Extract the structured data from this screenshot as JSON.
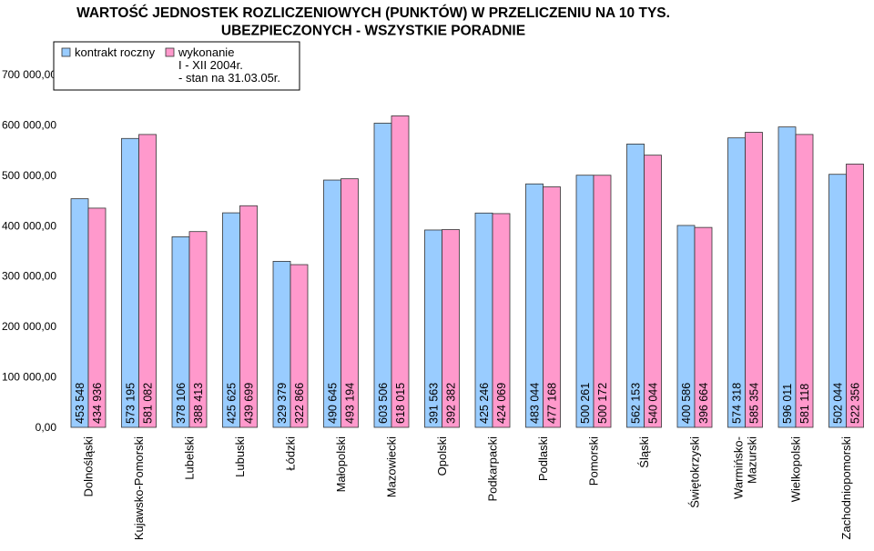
{
  "chart_data": {
    "type": "bar",
    "title": [
      "WARTOŚĆ JEDNOSTEK ROZLICZENIOWYCH (PUNKTÓW) W PRZELICZENIU NA 10 TYS.",
      "UBEZPIECZONYCH -  WSZYSTKIE PORADNIE"
    ],
    "categories": [
      "Dolnośląski",
      "Kujawsko-Pomorski",
      "Lubelski",
      "Lubuski",
      "Łódzki",
      "Małopolski",
      "Mazowiecki",
      "Opolski",
      "Podkarpacki",
      "Podlaski",
      "Pomorski",
      "Śląski",
      "Świętokrzyski",
      "Warmińsko-Mazurski",
      "Wielkopolski",
      "Zachodniopomorski"
    ],
    "category_lines": [
      [
        "Dolnośląski"
      ],
      [
        "Kujawsko-Pomorski"
      ],
      [
        "Lubelski"
      ],
      [
        "Lubuski"
      ],
      [
        "Łódzki"
      ],
      [
        "Małopolski"
      ],
      [
        "Mazowiecki"
      ],
      [
        "Opolski"
      ],
      [
        "Podkarpacki"
      ],
      [
        "Podlaski"
      ],
      [
        "Pomorski"
      ],
      [
        "Śląski"
      ],
      [
        "Świętokrzyski"
      ],
      [
        "Warmińsko-",
        "Mazurski"
      ],
      [
        "Wielkopolski"
      ],
      [
        "Zachodniopomorski"
      ]
    ],
    "series": [
      {
        "name": "kontrakt roczny",
        "color": "#99CCFF",
        "values": [
          453548,
          573195,
          378106,
          425625,
          329379,
          490645,
          603506,
          391563,
          425246,
          483044,
          500261,
          562153,
          400586,
          574318,
          596011,
          502044
        ],
        "labels": [
          "453 548",
          "573 195",
          "378 106",
          "425 625",
          "329 379",
          "490 645",
          "603 506",
          "391 563",
          "425 246",
          "483 044",
          "500 261",
          "562 153",
          "400 586",
          "574 318",
          "596 011",
          "502 044"
        ]
      },
      {
        "name": "wykonanie I - XII 2004r. - stan na 31.03.05r.",
        "name_lines": [
          "wykonanie",
          "I - XII 2004r.",
          "- stan na 31.03.05r."
        ],
        "color": "#FF99CC",
        "values": [
          434936,
          581082,
          388413,
          439699,
          322866,
          493194,
          618015,
          392382,
          424069,
          477168,
          500172,
          540044,
          396664,
          585354,
          581118,
          522356
        ],
        "labels": [
          "434 936",
          "581 082",
          "388 413",
          "439 699",
          "322 866",
          "493 194",
          "618 015",
          "392 382",
          "424 069",
          "477 168",
          "500 172",
          "540 044",
          "396 664",
          "585 354",
          "581 118",
          "522 356"
        ]
      }
    ],
    "ylim": [
      0,
      700000
    ],
    "yticks": [
      0,
      100000,
      200000,
      300000,
      400000,
      500000,
      600000,
      700000
    ],
    "ytick_labels": [
      "0,00",
      "100 000,00",
      "200 000,00",
      "300 000,00",
      "400 000,00",
      "500 000,00",
      "600 000,00",
      "700 000,00"
    ],
    "grid": false,
    "legend_position": "top-left"
  }
}
